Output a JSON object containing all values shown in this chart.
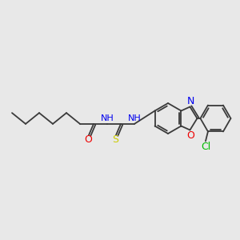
{
  "background_color": "#e8e8e8",
  "bond_color": "#3a3a3a",
  "atom_colors": {
    "N": "#0000ee",
    "O": "#ee0000",
    "S": "#cccc00",
    "Cl": "#00bb00",
    "C": "#3a3a3a"
  },
  "figsize": [
    3.0,
    3.0
  ],
  "dpi": 100,
  "lw": 1.3,
  "font_size": 8.5
}
